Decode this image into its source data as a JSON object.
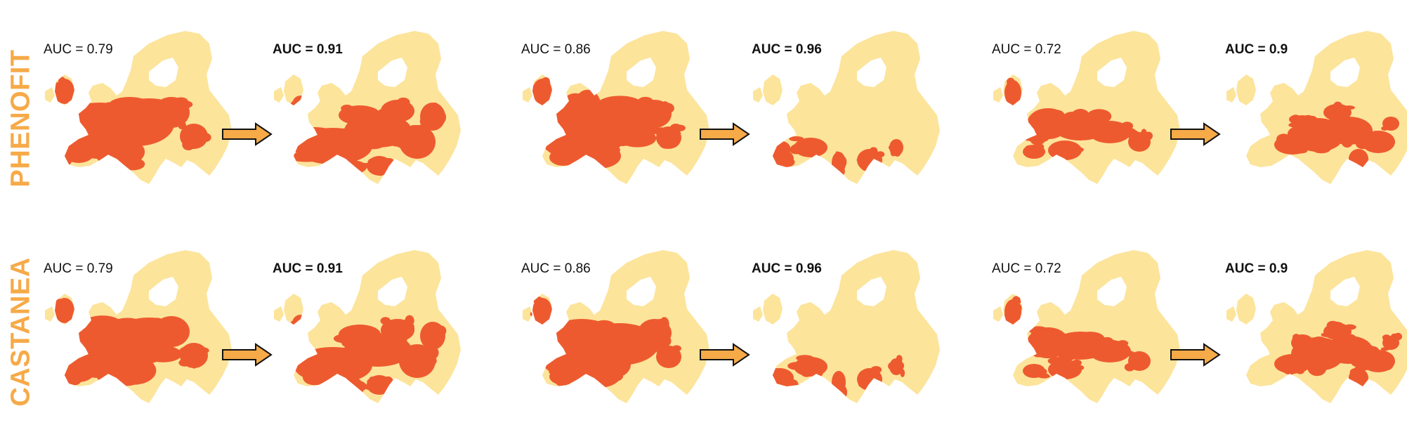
{
  "colors": {
    "suitable": "#EE5A2F",
    "unsuitable": "#FCE49B",
    "label": "#F6AA48",
    "arrow_fill": "#F6AA48",
    "arrow_stroke": "#111111"
  },
  "rows": [
    {
      "label": "PHENOFIT",
      "pairs": [
        {
          "before": "AUC = 0.79",
          "after": "AUC = 0.91"
        },
        {
          "before": "AUC = 0.86",
          "after": "AUC = 0.96"
        },
        {
          "before": "AUC = 0.72",
          "after": "AUC = 0.9"
        }
      ]
    },
    {
      "label": "CASTANEA",
      "pairs": [
        {
          "before": "AUC = 0.79",
          "after": "AUC = 0.91"
        },
        {
          "before": "AUC = 0.86",
          "after": "AUC = 0.96"
        },
        {
          "before": "AUC = 0.72",
          "after": "AUC = 0.9"
        }
      ]
    }
  ]
}
